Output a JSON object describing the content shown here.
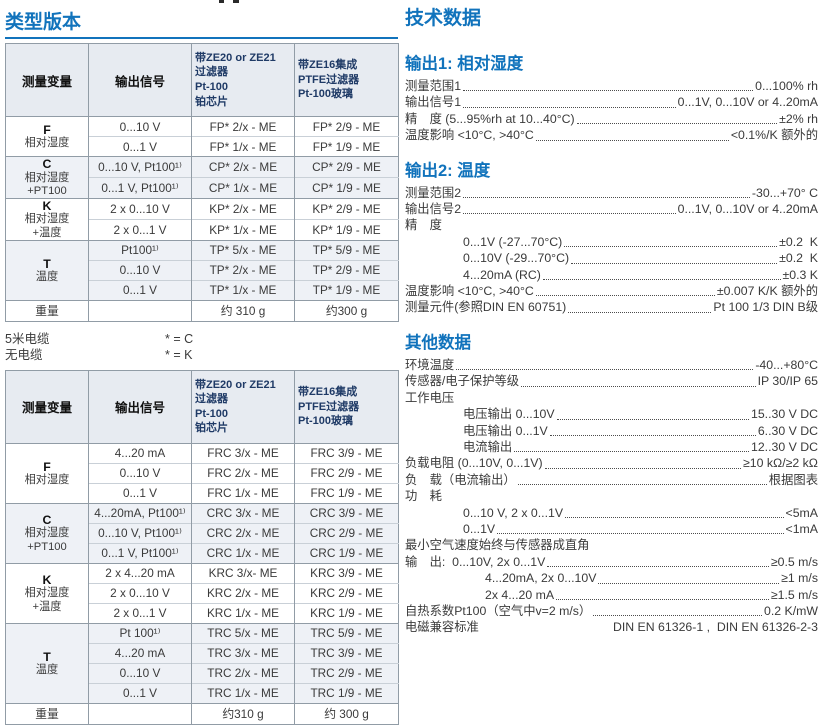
{
  "accent_blue": "#1173bc",
  "header_navy": "#1f3a66",
  "left": {
    "title": "类型版本",
    "table_headers": {
      "col1": "测量变量",
      "col2": "输出信号",
      "col3": "带ZE20 or ZE21\n过滤器\nPt-100\n铂芯片",
      "col4": "带ZE16集成\nPTFE过滤器\nPt-100玻璃"
    },
    "table1": {
      "groups": [
        {
          "variable": "F",
          "desc": "相对湿度",
          "rows": [
            {
              "signal": "0...10 V",
              "me1": "FP* 2/x - ME",
              "me2": "FP* 2/9 - ME"
            },
            {
              "signal": "0...1 V",
              "me1": "FP* 1/x - ME",
              "me2": "FP* 1/9 - ME"
            }
          ]
        },
        {
          "variable": "C",
          "desc": "相对湿度\n+PT100",
          "rows": [
            {
              "signal": "0...10 V, Pt100¹⁾",
              "me1": "CP* 2/x - ME",
              "me2": "CP* 2/9 - ME"
            },
            {
              "signal": "0...1 V, Pt100¹⁾",
              "me1": "CP* 1/x - ME",
              "me2": "CP* 1/9 - ME"
            }
          ]
        },
        {
          "variable": "K",
          "desc": "相对湿度\n+温度",
          "rows": [
            {
              "signal": "2 x 0...10 V",
              "me1": "KP* 2/x - ME",
              "me2": "KP* 2/9 - ME"
            },
            {
              "signal": "2 x 0...1 V",
              "me1": "KP* 1/x - ME",
              "me2": "KP* 1/9 - ME"
            }
          ]
        },
        {
          "variable": "T",
          "desc": "温度",
          "rows": [
            {
              "signal": "Pt100¹⁾",
              "me1": "TP* 5/x - ME",
              "me2": "TP* 5/9 - ME"
            },
            {
              "signal": "0...10 V",
              "me1": "TP* 2/x - ME",
              "me2": "TP* 2/9 - ME"
            },
            {
              "signal": "0...1 V",
              "me1": "TP* 1/x - ME",
              "me2": "TP* 1/9 - ME"
            }
          ]
        }
      ],
      "weight": {
        "label": "重量",
        "me1": "约 310 g",
        "me2": "约300 g"
      }
    },
    "legend": [
      {
        "label": "5米电缆",
        "value": "* = C"
      },
      {
        "label": "无电缆",
        "value": "* = K"
      }
    ],
    "table2": {
      "groups": [
        {
          "variable": "F",
          "desc": "相对湿度",
          "rows": [
            {
              "signal": "4...20 mA",
              "me1": "FRC 3/x - ME",
              "me2": "FRC 3/9 - ME"
            },
            {
              "signal": "0...10 V",
              "me1": "FRC 2/x - ME",
              "me2": "FRC 2/9 - ME"
            },
            {
              "signal": "0...1 V",
              "me1": "FRC 1/x - ME",
              "me2": "FRC 1/9 - ME"
            }
          ]
        },
        {
          "variable": "C",
          "desc": "相对湿度\n+PT100",
          "rows": [
            {
              "signal": "4...20mA, Pt100¹⁾",
              "me1": "CRC 3/x - ME",
              "me2": "CRC 3/9 - ME"
            },
            {
              "signal": "0...10 V, Pt100¹⁾",
              "me1": "CRC 2/x - ME",
              "me2": "CRC 2/9 - ME"
            },
            {
              "signal": "0...1 V, Pt100¹⁾",
              "me1": "CRC 1/x - ME",
              "me2": "CRC 1/9 - ME"
            }
          ]
        },
        {
          "variable": "K",
          "desc": "相对湿度\n+温度",
          "rows": [
            {
              "signal": "2 x 4...20 mA",
              "me1": "KRC 3/x- ME",
              "me2": "KRC 3/9 - ME"
            },
            {
              "signal": "2 x 0...10 V",
              "me1": "KRC 2/x - ME",
              "me2": "KRC 2/9 - ME"
            },
            {
              "signal": "2 x 0...1 V",
              "me1": "KRC 1/x - ME",
              "me2": "KRC 1/9 - ME"
            }
          ]
        },
        {
          "variable": "T",
          "desc": "温度",
          "rows": [
            {
              "signal": "Pt 100¹⁾",
              "me1": "TRC 5/x - ME",
              "me2": "TRC 5/9 - ME"
            },
            {
              "signal": "4...20 mA",
              "me1": "TRC 3/x - ME",
              "me2": "TRC 3/9 - ME"
            },
            {
              "signal": "0...10 V",
              "me1": "TRC 2/x - ME",
              "me2": "TRC 2/9 - ME"
            },
            {
              "signal": "0...1 V",
              "me1": "TRC 1/x - ME",
              "me2": "TRC 1/9 - ME"
            }
          ]
        }
      ],
      "weight": {
        "label": "重量",
        "me1": "约310 g",
        "me2": "约 300 g"
      }
    }
  },
  "right": {
    "title": "技术数据",
    "sections": [
      {
        "title": "输出1: 相对湿度",
        "lines": [
          {
            "label": "测量范围1",
            "value": "0...100% rh",
            "indent": 0,
            "leader": true
          },
          {
            "label": "输出信号1",
            "value": "0...1V, 0...10V or 4..20mA",
            "indent": 0,
            "leader": true
          },
          {
            "label": "精　度 (5...95%rh at 10...40°C)",
            "value": "±2% rh",
            "indent": 0,
            "leader": true
          },
          {
            "label": "温度影响 <10°C, >40°C",
            "value": "<0.1%/K 额外的",
            "indent": 0,
            "leader": true
          }
        ]
      },
      {
        "title": "输出2: 温度",
        "lines": [
          {
            "label": "测量范围2",
            "value": "-30...+70° C",
            "indent": 0,
            "leader": true
          },
          {
            "label": "输出信号2",
            "value": "0...1V, 0...10V or 4..20mA",
            "indent": 0,
            "leader": true
          },
          {
            "label": "精　度",
            "value": "",
            "indent": 0,
            "leader": false
          },
          {
            "label": "0...1V (-27...70°C)",
            "value": "±0.2  K",
            "indent": 1,
            "leader": true
          },
          {
            "label": "0...10V (-29...70°C)",
            "value": "±0.2  K",
            "indent": 1,
            "leader": true
          },
          {
            "label": "4...20mA (RC)",
            "value": "±0.3 K",
            "indent": 1,
            "leader": true
          },
          {
            "label": "温度影响 <10°C, >40°C",
            "value": "±0.007 K/K 额外的",
            "indent": 0,
            "leader": true
          },
          {
            "label": "测量元件(参照DIN EN 60751)",
            "value": "Pt 100 1/3 DIN B级",
            "indent": 0,
            "leader": true
          }
        ]
      },
      {
        "title": "其他数据",
        "lines": [
          {
            "label": "环境温度",
            "value": "-40...+80°C",
            "indent": 0,
            "leader": true
          },
          {
            "label": "传感器/电子保护等级",
            "value": "IP 30/IP 65",
            "indent": 0,
            "leader": true
          },
          {
            "label": "工作电压",
            "value": "",
            "indent": 0,
            "leader": false
          },
          {
            "label": "电压输出 0...10V",
            "value": "15..30 V DC",
            "indent": 1,
            "leader": true
          },
          {
            "label": "电压输出 0...1V",
            "value": "6..30 V DC",
            "indent": 1,
            "leader": true
          },
          {
            "label": "电流输出",
            "value": "12..30 V DC",
            "indent": 1,
            "leader": true
          },
          {
            "label": "负载电阻 (0...10V, 0...1V)",
            "value": "≥10 kΩ/≥2 kΩ",
            "indent": 0,
            "leader": true
          },
          {
            "label": "负　载（电流输出）",
            "value": "根据图表",
            "indent": 0,
            "leader": true
          },
          {
            "label": "功　耗",
            "value": "",
            "indent": 0,
            "leader": false
          },
          {
            "label": "0...10 V, 2 x 0...1V",
            "value": "<5mA",
            "indent": 1,
            "leader": true
          },
          {
            "label": "0...1V",
            "value": "<1mA",
            "indent": 1,
            "leader": true
          },
          {
            "label": "最小空气速度始终与传感器成直角",
            "value": "",
            "indent": 0,
            "leader": false
          },
          {
            "label": "输　出:  0...10V, 2x 0...1V",
            "value": "≥0.5 m/s",
            "indent": 0,
            "leader": true
          },
          {
            "label": "4...20mA, 2x 0...10V",
            "value": "≥1 m/s",
            "indent": 2,
            "leader": true
          },
          {
            "label": "2x 4...20 mA",
            "value": "≥1.5 m/s",
            "indent": 2,
            "leader": true
          },
          {
            "label": "自热系数Pt100（空气中v=2 m/s）",
            "value": "0.2 K/mW",
            "indent": 0,
            "leader": true
          },
          {
            "label": "电磁兼容标准",
            "value": "DIN EN 61326-1 ,  DIN EN 61326-2-3",
            "indent": 0,
            "leader": false
          }
        ]
      }
    ]
  }
}
